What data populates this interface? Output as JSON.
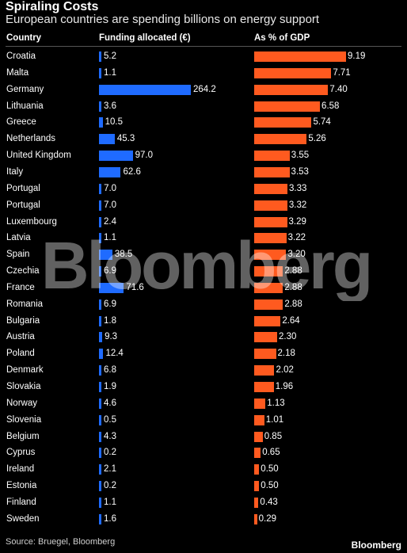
{
  "chart_data": {
    "type": "bar",
    "title": "Spiraling Costs",
    "subtitle": "European countries are spending billions on energy support",
    "category_header": "Country",
    "categories": [
      "Croatia",
      "Malta",
      "Germany",
      "Lithuania",
      "Greece",
      "Netherlands",
      "United Kingdom",
      "Italy",
      "Portugal",
      "Portugal",
      "Luxembourg",
      "Latvia",
      "Spain",
      "Czechia",
      "France",
      "Romania",
      "Bulgaria",
      "Austria",
      "Poland",
      "Denmark",
      "Slovakia",
      "Norway",
      "Slovenia",
      "Belgium",
      "Cyprus",
      "Ireland",
      "Estonia",
      "Finland",
      "Sweden"
    ],
    "series": [
      {
        "name": "Funding allocated (€)",
        "color": "#1f6bff",
        "values": [
          5.2,
          1.1,
          264.2,
          3.6,
          10.5,
          45.3,
          97.0,
          62.6,
          7.0,
          7.0,
          2.4,
          1.1,
          38.5,
          6.9,
          71.6,
          6.9,
          1.8,
          9.3,
          12.4,
          6.8,
          1.9,
          4.6,
          0.5,
          4.3,
          0.2,
          2.1,
          0.2,
          1.1,
          1.6
        ],
        "labels": [
          "5.2",
          "1.1",
          "264.2",
          "3.6",
          "10.5",
          "45.3",
          "97.0",
          "62.6",
          "7.0",
          "7.0",
          "2.4",
          "1.1",
          "38.5",
          "6.9",
          "71.6",
          "6.9",
          "1.8",
          "9.3",
          "12.4",
          "6.8",
          "1.9",
          "4.6",
          "0.5",
          "4.3",
          "0.2",
          "2.1",
          "0.2",
          "1.1",
          "1.6"
        ]
      },
      {
        "name": "As % of GDP",
        "color": "#ff5a1f",
        "values": [
          9.19,
          7.71,
          7.4,
          6.58,
          5.74,
          5.26,
          3.55,
          3.53,
          3.33,
          3.32,
          3.29,
          3.22,
          3.2,
          2.88,
          2.88,
          2.88,
          2.64,
          2.3,
          2.18,
          2.02,
          1.96,
          1.13,
          1.01,
          0.85,
          0.65,
          0.5,
          0.5,
          0.43,
          0.29
        ],
        "labels": [
          "9.19",
          "7.71",
          "7.40",
          "6.58",
          "5.74",
          "5.26",
          "3.55",
          "3.53",
          "3.33",
          "3.32",
          "3.29",
          "3.22",
          "3.20",
          "2.88",
          "2.88",
          "2.88",
          "2.64",
          "2.30",
          "2.18",
          "2.02",
          "1.96",
          "1.13",
          "1.01",
          "0.85",
          "0.65",
          "0.50",
          "0.50",
          "0.43",
          "0.29"
        ]
      }
    ],
    "grid": false
  },
  "source": "Source: Bruegel, Bloomberg",
  "brand": "Bloomberg",
  "watermark": "Bloomberg"
}
